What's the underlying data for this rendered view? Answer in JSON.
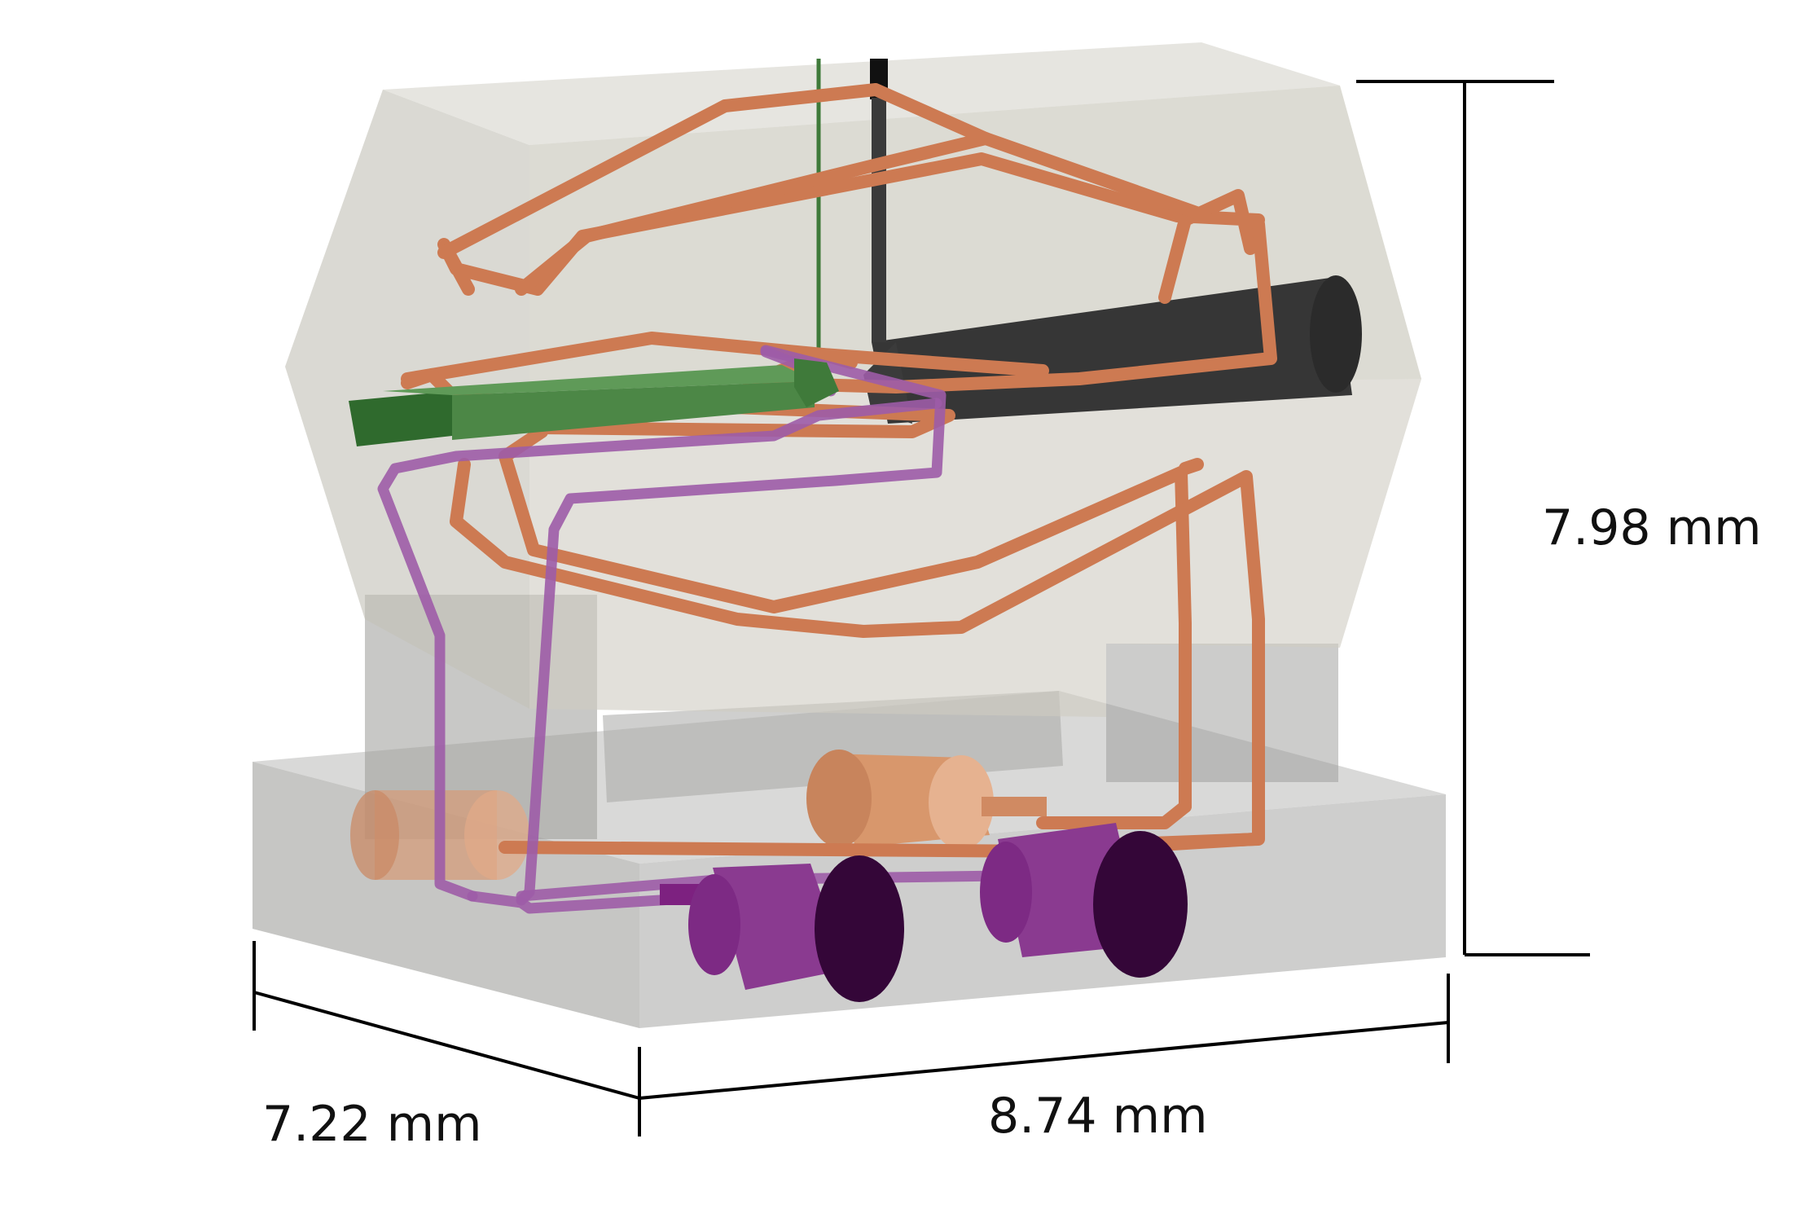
{
  "figure": {
    "subject": "3D CAD model of coil assembly",
    "dimensions": {
      "height": "7.98 mm",
      "depth": "7.22 mm",
      "width": "8.74 mm"
    }
  },
  "colors": {
    "housing": "#cfcdc4",
    "base": "#c4c4c2",
    "copper": "#c8764e",
    "purple_wire": "#9a5aa3",
    "purple_connector": "#6e1470",
    "green_rod": "#4d8447",
    "black_core": "#333333",
    "dimension_line": "#000000"
  }
}
